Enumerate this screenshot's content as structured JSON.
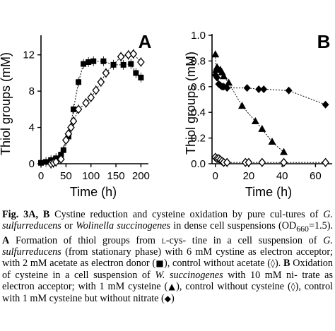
{
  "chart_data": [
    {
      "panel": "A",
      "type": "scatter",
      "ylabel": "Thiol groups (mM)",
      "xlabel": "Time (h)",
      "xlim": [
        0,
        215
      ],
      "ylim": [
        0,
        14
      ],
      "xticks": [
        "0",
        "50",
        "100",
        "150",
        "200"
      ],
      "yticks": [
        "0",
        "4",
        "8",
        "12"
      ],
      "series": [
        {
          "marker": "filled-square",
          "x": [
            0,
            10,
            20,
            30,
            40,
            45,
            55,
            65,
            75,
            85,
            95,
            105,
            125,
            145,
            165,
            180,
            190,
            200
          ],
          "y": [
            0.1,
            0.2,
            0.4,
            0.6,
            1.0,
            1.5,
            3.0,
            6.0,
            9.0,
            11.0,
            11.2,
            11.3,
            11.3,
            10.9,
            10.9,
            11.0,
            10.0,
            9.5
          ]
        },
        {
          "marker": "open-diamond",
          "x": [
            20,
            25,
            30,
            40,
            50,
            55,
            60,
            65,
            75,
            90,
            100,
            110,
            120,
            130,
            160,
            175,
            185,
            200
          ],
          "y": [
            0.0,
            0.1,
            0.2,
            0.5,
            2.6,
            3.3,
            4.0,
            4.7,
            6.0,
            6.7,
            7.3,
            8.1,
            9.0,
            10.0,
            11.8,
            12.0,
            12.1,
            11.2
          ]
        }
      ]
    },
    {
      "panel": "B",
      "type": "scatter",
      "ylabel": "Thiol groups (mM)",
      "xlabel": "Time (h)",
      "xlim": [
        -2,
        70
      ],
      "ylim": [
        0,
        1.0
      ],
      "xticks": [
        "0",
        "20",
        "40",
        "60"
      ],
      "yticks": [
        "0.0",
        "0.2",
        "0.4",
        "0.6",
        "0.8",
        "1.0"
      ],
      "series": [
        {
          "marker": "filled-triangle",
          "x": [
            0,
            0.5,
            1,
            2,
            3,
            4,
            5,
            8,
            16,
            24,
            28,
            34,
            41
          ],
          "y": [
            0.85,
            0.73,
            0.75,
            0.73,
            0.73,
            0.71,
            0.68,
            0.63,
            0.45,
            0.33,
            0.27,
            0.17,
            0.09
          ]
        },
        {
          "marker": "filled-diamond",
          "x": [
            0,
            1,
            2,
            3,
            4,
            5,
            7,
            19,
            26,
            29,
            44,
            66
          ],
          "y": [
            0.69,
            0.67,
            0.62,
            0.61,
            0.6,
            0.6,
            0.59,
            0.59,
            0.58,
            0.58,
            0.57,
            0.46
          ]
        },
        {
          "marker": "open-diamond",
          "x": [
            0,
            1,
            2,
            3,
            4,
            5,
            7,
            18,
            20,
            28,
            41,
            66
          ],
          "y": [
            0.05,
            0.04,
            0.04,
            0.03,
            0.02,
            0.01,
            0.01,
            0.01,
            0.01,
            0.01,
            0.01,
            0.01
          ]
        }
      ]
    }
  ],
  "caption": {
    "p1": "Fig. 3A, B",
    "p2": " Cystine reduction and cysteine oxidation by pure cul-",
    "p3": "tures of ",
    "p4": "G. sulfurreducens",
    "p5": " or ",
    "p6": "Wolinella succinogenes",
    "p7": " in dense cell",
    "p8": "suspensions (OD",
    "p9": "660",
    "p10": "=1.5). ",
    "p11": "A",
    "p12": " Formation of thiol groups from ",
    "p13": "l",
    "p14": "-cys-",
    "p15": "tine in a cell suspension of ",
    "p16": "G. sulfurreducens",
    "p17": " (from stationary",
    "p18": "phase) with 6 mM cystine as electron acceptor; with 2 mM acetate",
    "p19": "as electron donor (",
    "p20": "■",
    "p21": "), control without acetate (",
    "p22": "◊",
    "p23": "). ",
    "p24": "B",
    "p25": " Oxidation of",
    "p26": "cysteine in a cell suspension of ",
    "p27": "W. succinogenes",
    "p28": " with 10 mM ni-",
    "p29": "trate as electron acceptor; with 1 mM cysteine (",
    "p30": "▲",
    "p31": "), control without",
    "p32": "cysteine (",
    "p33": "◊",
    "p34": "), control with 1 mM cysteine but without nitrate (",
    "p35": "◆",
    "p36": ")"
  }
}
